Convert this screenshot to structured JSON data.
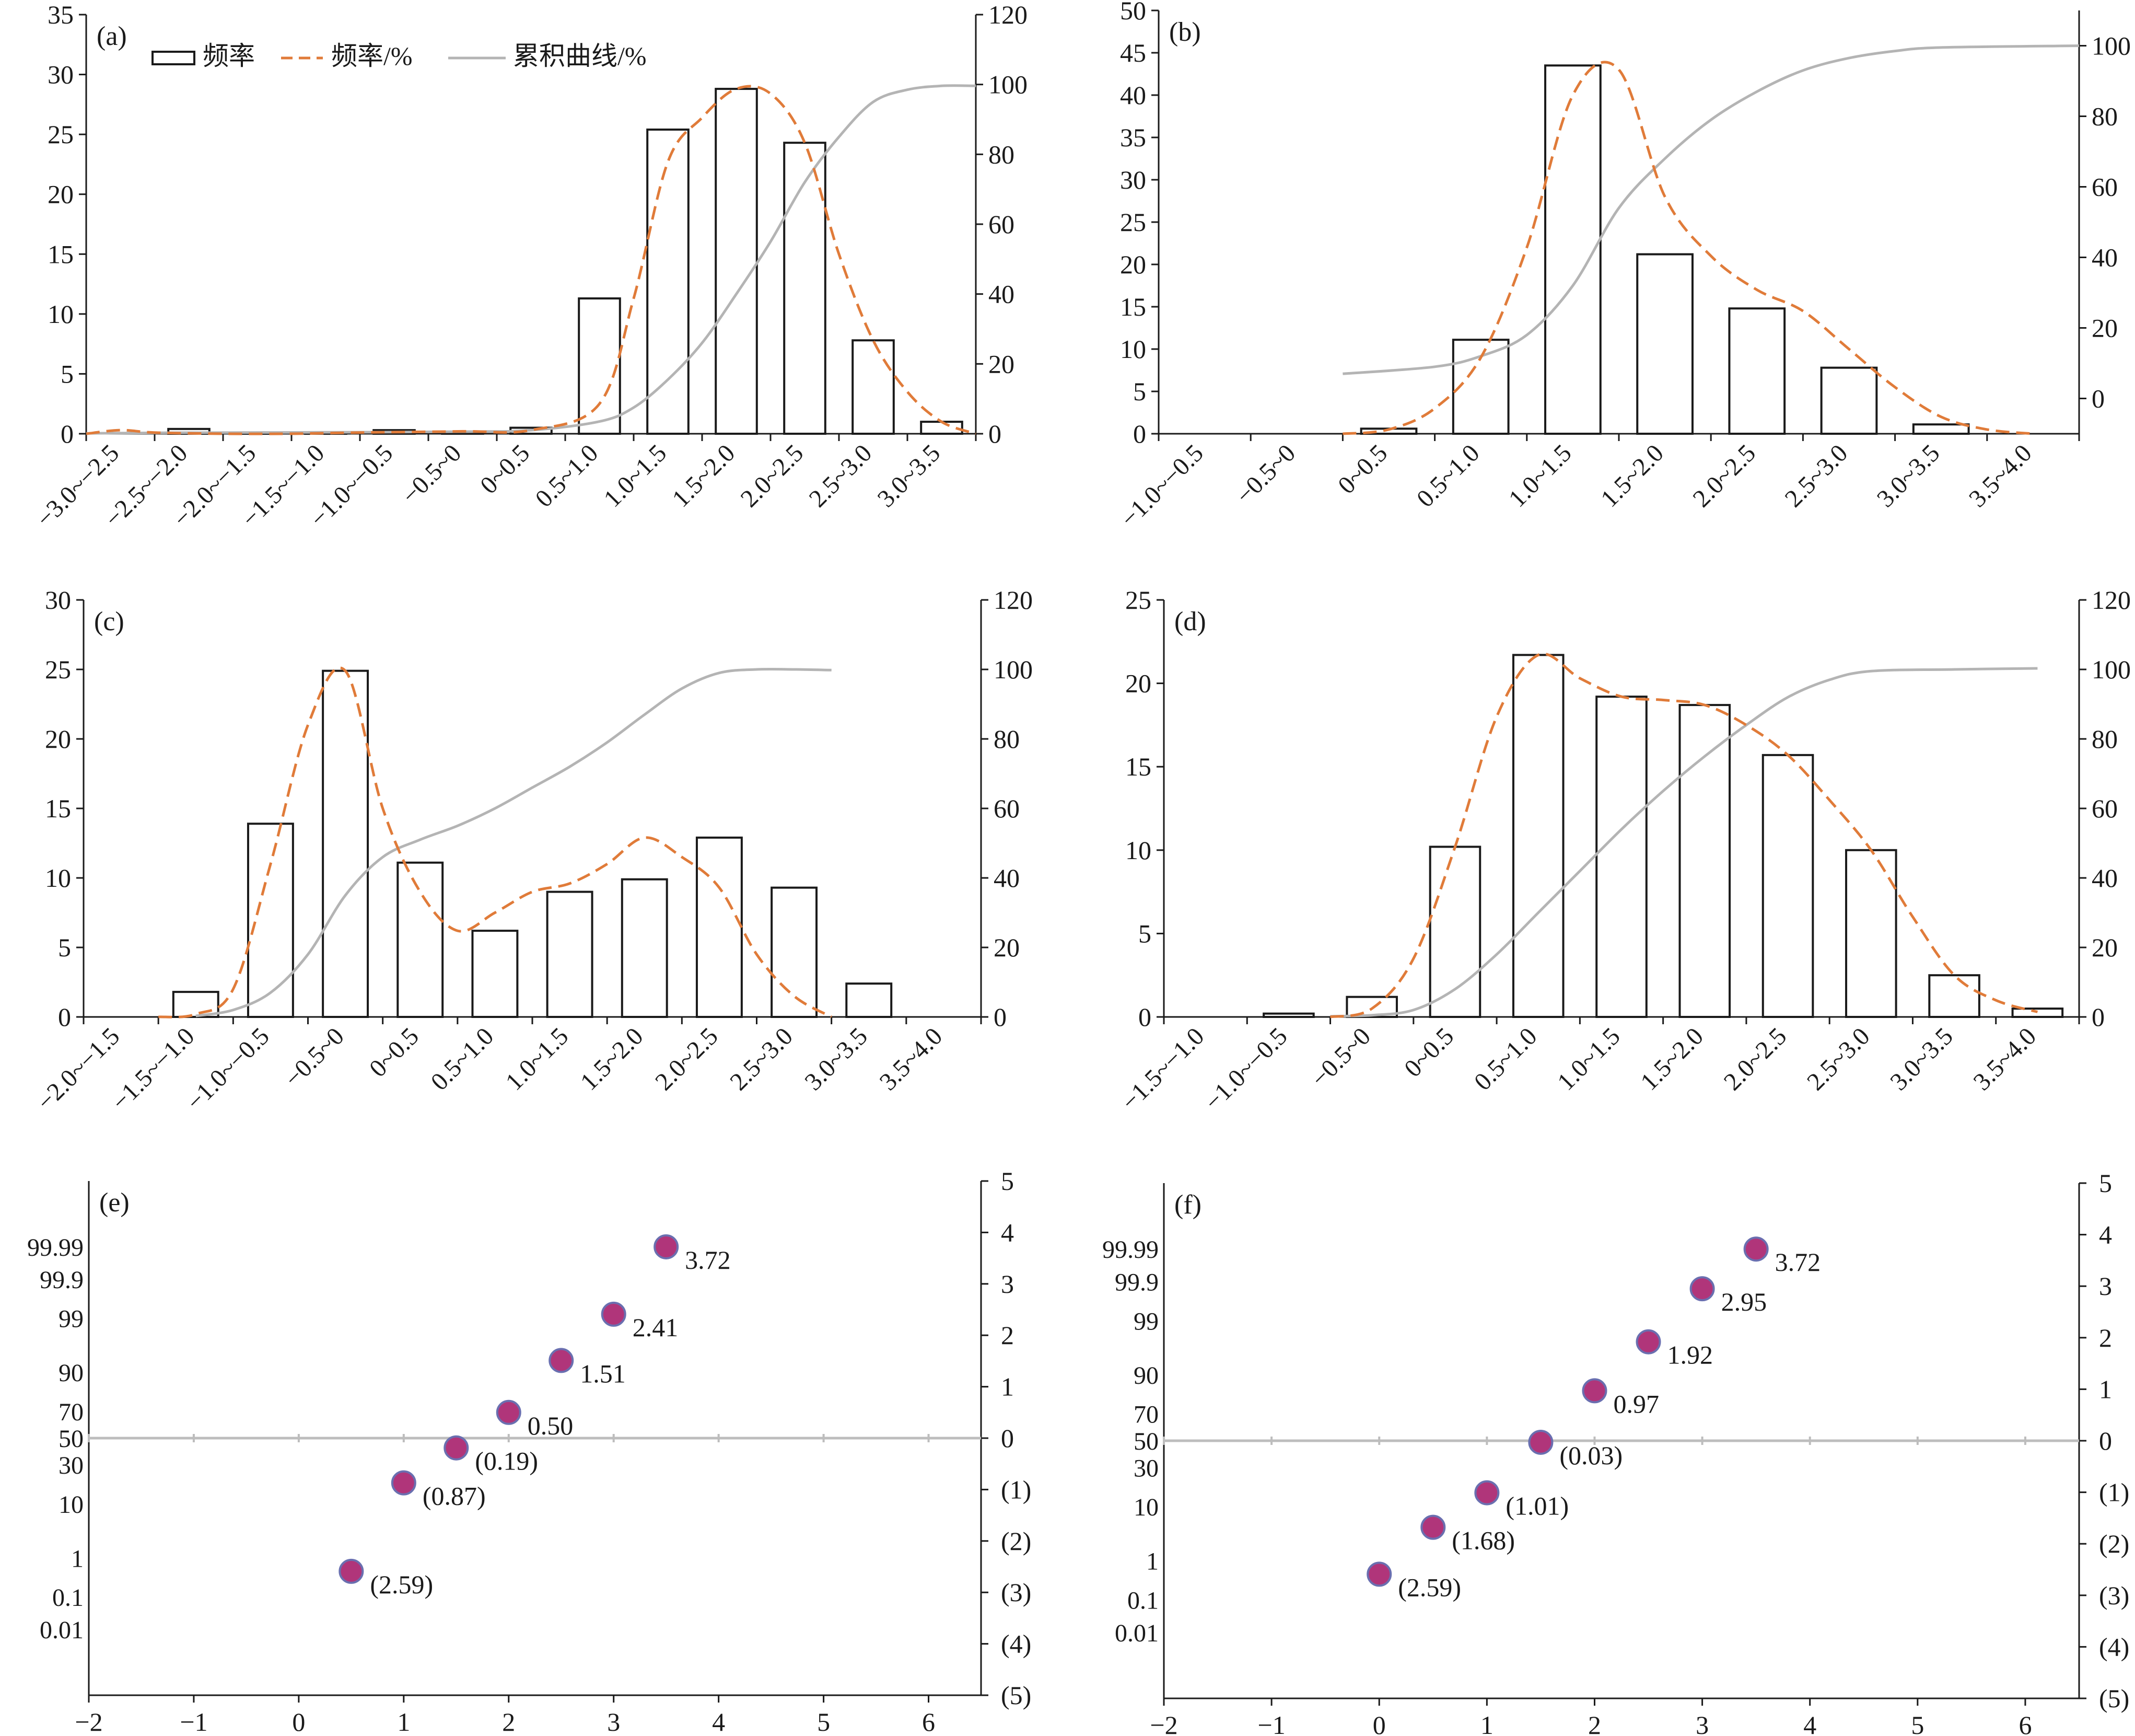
{
  "colors": {
    "bar_fill": "#ffffff",
    "bar_stroke": "#1a1a1a",
    "freq_line": "#e07b39",
    "cum_line": "#b4b4b4",
    "point_fill": "#b0357a",
    "point_stroke": "#6a6fb0",
    "neg_label": "#d8282a",
    "axis": "#1a1a1a",
    "zero_line": "#bdbdbd"
  },
  "legend": {
    "bars": "频率",
    "freq": "频率/%",
    "cum": "累积曲线/%"
  },
  "chart_data": [
    {
      "id": "a",
      "panel_label": "(a)",
      "type": "bar",
      "categories": [
        "−3.0~−2.5",
        "−2.5~−2.0",
        "−2.0~−1.5",
        "−1.5~−1.0",
        "−1.0~−0.5",
        "−0.5~0",
        "0~0.5",
        "0.5~1.0",
        "1.0~1.5",
        "1.5~2.0",
        "2.0~2.5",
        "2.5~3.0",
        "3.0~3.5"
      ],
      "values": [
        0.0,
        0.4,
        0.1,
        0.1,
        0.3,
        0.1,
        0.5,
        11.3,
        25.4,
        28.8,
        24.3,
        7.8,
        1.0
      ],
      "freq_curve": [
        [
          -0.5,
          0
        ],
        [
          0,
          0.3
        ],
        [
          0.5,
          0.1
        ],
        [
          1.5,
          0
        ],
        [
          2.5,
          0
        ],
        [
          3.5,
          0.1
        ],
        [
          5,
          0.2
        ],
        [
          6,
          0.3
        ],
        [
          7,
          2.5
        ],
        [
          7.5,
          11.3
        ],
        [
          8,
          22.7
        ],
        [
          8.5,
          26.4
        ],
        [
          9,
          28.8
        ],
        [
          9.5,
          28.4
        ],
        [
          10,
          24.3
        ],
        [
          10.5,
          15
        ],
        [
          11,
          7.8
        ],
        [
          11.5,
          3.5
        ],
        [
          12,
          1
        ],
        [
          12.5,
          0
        ]
      ],
      "cum_curve": [
        [
          -0.5,
          0.1
        ],
        [
          1,
          0.3
        ],
        [
          3,
          0.4
        ],
        [
          5,
          0.6
        ],
        [
          6,
          1
        ],
        [
          7,
          3.5
        ],
        [
          7.5,
          7.5
        ],
        [
          8,
          15.5
        ],
        [
          8.5,
          26
        ],
        [
          9,
          40
        ],
        [
          9.5,
          55
        ],
        [
          10,
          72
        ],
        [
          10.5,
          85
        ],
        [
          11,
          95
        ],
        [
          11.5,
          98.5
        ],
        [
          12,
          99.6
        ],
        [
          12.5,
          99.6
        ]
      ],
      "ylim_left": [
        0,
        35
      ],
      "ylim_right": [
        0,
        120
      ],
      "yticks_left": [
        "0",
        "5",
        "10",
        "15",
        "20",
        "25",
        "30",
        "35"
      ],
      "yticks_right": [
        "0",
        "20",
        "40",
        "60",
        "80",
        "100",
        "120"
      ]
    },
    {
      "id": "b",
      "panel_label": "(b)",
      "type": "bar",
      "categories": [
        "−1.0~−0.5",
        "−0.5~0",
        "0~0.5",
        "0.5~1.0",
        "1.0~1.5",
        "1.5~2.0",
        "2.0~2.5",
        "2.5~3.0",
        "3.0~3.5",
        "3.5~4.0"
      ],
      "values": [
        0.0,
        0.0,
        0.6,
        11.1,
        43.5,
        21.2,
        14.8,
        7.8,
        1.1,
        0.0
      ],
      "freq_curve": [
        [
          1.5,
          0
        ],
        [
          2,
          0.5
        ],
        [
          2.5,
          3
        ],
        [
          3,
          9
        ],
        [
          3.5,
          22
        ],
        [
          4,
          40
        ],
        [
          4.5,
          43
        ],
        [
          5,
          28
        ],
        [
          5.5,
          21
        ],
        [
          6,
          17
        ],
        [
          6.5,
          14.5
        ],
        [
          7,
          10
        ],
        [
          7.5,
          5.5
        ],
        [
          8,
          2
        ],
        [
          8.5,
          0.5
        ],
        [
          9,
          0
        ]
      ],
      "cum_curve": [
        [
          1.5,
          7
        ],
        [
          2.5,
          9
        ],
        [
          3,
          12
        ],
        [
          3.5,
          18
        ],
        [
          4,
          32
        ],
        [
          4.5,
          54
        ],
        [
          5,
          68
        ],
        [
          5.5,
          79
        ],
        [
          6,
          87
        ],
        [
          6.5,
          93
        ],
        [
          7,
          96.5
        ],
        [
          7.5,
          98.5
        ],
        [
          8,
          99.5
        ],
        [
          9.5,
          100
        ]
      ],
      "ylim_left": [
        0,
        50
      ],
      "ylim_right": [
        -10,
        110
      ],
      "yticks_left": [
        "0",
        "5",
        "10",
        "15",
        "20",
        "25",
        "30",
        "35",
        "40",
        "45",
        "50"
      ],
      "yticks_right": [
        "0",
        "20",
        "40",
        "60",
        "80",
        "100"
      ]
    },
    {
      "id": "c",
      "panel_label": "(c)",
      "type": "bar",
      "categories": [
        "−2.0~−1.5",
        "−1.5~−1.0",
        "−1.0~−0.5",
        "−0.5~0",
        "0~0.5",
        "0.5~1.0",
        "1.0~1.5",
        "1.5~2.0",
        "2.0~2.5",
        "2.5~3.0",
        "3.0~3.5",
        "3.5~4.0"
      ],
      "values": [
        0.0,
        1.8,
        13.9,
        24.9,
        11.1,
        6.2,
        9.0,
        9.9,
        12.9,
        9.3,
        2.4,
        0.0
      ],
      "freq_curve": [
        [
          0.5,
          0
        ],
        [
          1,
          0.2
        ],
        [
          1.5,
          2
        ],
        [
          2,
          11
        ],
        [
          2.5,
          21
        ],
        [
          3,
          24.9
        ],
        [
          3.5,
          15
        ],
        [
          4,
          9
        ],
        [
          4.5,
          6.2
        ],
        [
          5,
          7.5
        ],
        [
          5.5,
          9
        ],
        [
          6,
          9.6
        ],
        [
          6.5,
          11
        ],
        [
          7,
          12.9
        ],
        [
          7.5,
          11.5
        ],
        [
          8,
          9.3
        ],
        [
          8.5,
          4.5
        ],
        [
          9,
          1.5
        ],
        [
          9.5,
          0
        ]
      ],
      "cum_curve": [
        [
          1,
          0.3
        ],
        [
          1.5,
          2
        ],
        [
          2,
          7
        ],
        [
          2.5,
          18
        ],
        [
          3,
          35
        ],
        [
          3.5,
          46
        ],
        [
          4,
          51
        ],
        [
          4.5,
          55
        ],
        [
          5,
          60
        ],
        [
          5.5,
          66
        ],
        [
          6,
          72
        ],
        [
          6.5,
          79
        ],
        [
          7,
          87
        ],
        [
          7.5,
          94.5
        ],
        [
          8,
          99
        ],
        [
          8.5,
          100
        ],
        [
          9,
          100
        ],
        [
          9.5,
          99.8
        ]
      ],
      "ylim_left": [
        0,
        30
      ],
      "ylim_right": [
        0,
        120
      ],
      "yticks_left": [
        "0",
        "5",
        "10",
        "15",
        "20",
        "25",
        "30"
      ],
      "yticks_right": [
        "0",
        "20",
        "40",
        "60",
        "80",
        "100",
        "120"
      ]
    },
    {
      "id": "d",
      "panel_label": "(d)",
      "type": "bar",
      "categories": [
        "−1.5~−1.0",
        "−1.0~−0.5",
        "−0.5~0",
        "0~0.5",
        "0.5~1.0",
        "1.0~1.5",
        "1.5~2.0",
        "2.0~2.5",
        "2.5~3.0",
        "3.0~3.5",
        "3.5~4.0"
      ],
      "values": [
        0.0,
        0.2,
        1.2,
        10.2,
        21.7,
        19.2,
        18.7,
        15.7,
        10.0,
        2.5,
        0.5
      ],
      "freq_curve": [
        [
          1.5,
          0
        ],
        [
          2,
          0.5
        ],
        [
          2.5,
          3.5
        ],
        [
          3,
          10.2
        ],
        [
          3.5,
          18
        ],
        [
          4,
          21.7
        ],
        [
          4.5,
          20.3
        ],
        [
          5,
          19.2
        ],
        [
          5.5,
          19
        ],
        [
          6,
          18.7
        ],
        [
          6.5,
          17.5
        ],
        [
          7,
          15.7
        ],
        [
          7.5,
          13
        ],
        [
          8,
          10
        ],
        [
          8.5,
          6
        ],
        [
          9,
          2.5
        ],
        [
          9.5,
          1
        ],
        [
          10,
          0.3
        ]
      ],
      "cum_curve": [
        [
          1.5,
          0.2
        ],
        [
          2,
          0.5
        ],
        [
          2.5,
          2
        ],
        [
          3,
          8
        ],
        [
          3.5,
          18
        ],
        [
          4,
          30
        ],
        [
          4.5,
          42
        ],
        [
          5,
          54
        ],
        [
          5.5,
          65
        ],
        [
          6,
          75
        ],
        [
          6.5,
          84
        ],
        [
          7,
          92
        ],
        [
          7.5,
          97
        ],
        [
          8,
          99.5
        ],
        [
          9,
          100
        ],
        [
          10,
          100.3
        ]
      ],
      "ylim_left": [
        0,
        25
      ],
      "ylim_right": [
        0,
        120
      ],
      "yticks_left": [
        "0",
        "5",
        "10",
        "15",
        "20",
        "25"
      ],
      "yticks_right": [
        "0",
        "20",
        "40",
        "60",
        "80",
        "100",
        "120"
      ]
    },
    {
      "id": "e",
      "panel_label": "(e)",
      "type": "scatter",
      "x": [
        0.5,
        1.0,
        1.5,
        2.0,
        2.5,
        3.0,
        3.5
      ],
      "y": [
        -2.59,
        -0.87,
        -0.19,
        0.5,
        1.51,
        2.41,
        3.72
      ],
      "point_labels": [
        "(2.59)",
        "(0.87)",
        "(0.19)",
        "0.50",
        "1.51",
        "2.41",
        "3.72"
      ],
      "xlim": [
        -2,
        6.5
      ],
      "xticks": [
        "−2",
        "−1",
        "0",
        "1",
        "2",
        "3",
        "4",
        "5",
        "6"
      ],
      "ylim": [
        -5,
        5
      ],
      "prob_ticks": [
        {
          "label": "99.99",
          "y": 3.72
        },
        {
          "label": "99.9",
          "y": 3.09
        },
        {
          "label": "99",
          "y": 2.33
        },
        {
          "label": "90",
          "y": 1.28
        },
        {
          "label": "70",
          "y": 0.52
        },
        {
          "label": "50",
          "y": 0
        },
        {
          "label": "30",
          "y": -0.52
        },
        {
          "label": "10",
          "y": -1.28
        },
        {
          "label": "1",
          "y": -2.33
        },
        {
          "label": "0.1",
          "y": -3.09
        },
        {
          "label": "0.01",
          "y": -3.72
        }
      ],
      "right_ticks": [
        "(5)",
        "(4)",
        "(3)",
        "(2)",
        "(1)",
        "0",
        "1",
        "2",
        "3",
        "4",
        "5"
      ]
    },
    {
      "id": "f",
      "panel_label": "(f)",
      "type": "scatter",
      "x": [
        0.0,
        0.5,
        1.0,
        1.5,
        2.0,
        2.5,
        3.0,
        3.5
      ],
      "y": [
        -2.59,
        -1.68,
        -1.01,
        -0.03,
        0.97,
        1.92,
        2.95,
        3.72
      ],
      "point_labels": [
        "(2.59)",
        "(1.68)",
        "(1.01)",
        "(0.03)",
        "0.97",
        "1.92",
        "2.95",
        "3.72"
      ],
      "xlim": [
        -2,
        6.5
      ],
      "xticks": [
        "−2",
        "−1",
        "0",
        "1",
        "2",
        "3",
        "4",
        "5",
        "6"
      ],
      "ylim": [
        -5,
        5
      ],
      "prob_ticks": [
        {
          "label": "99.99",
          "y": 3.72
        },
        {
          "label": "99.9",
          "y": 3.09
        },
        {
          "label": "99",
          "y": 2.33
        },
        {
          "label": "90",
          "y": 1.28
        },
        {
          "label": "70",
          "y": 0.52
        },
        {
          "label": "50",
          "y": 0
        },
        {
          "label": "30",
          "y": -0.52
        },
        {
          "label": "10",
          "y": -1.28
        },
        {
          "label": "1",
          "y": -2.33
        },
        {
          "label": "0.1",
          "y": -3.09
        },
        {
          "label": "0.01",
          "y": -3.72
        }
      ],
      "right_ticks": [
        "(5)",
        "(4)",
        "(3)",
        "(2)",
        "(1)",
        "0",
        "1",
        "2",
        "3",
        "4",
        "5"
      ]
    }
  ]
}
